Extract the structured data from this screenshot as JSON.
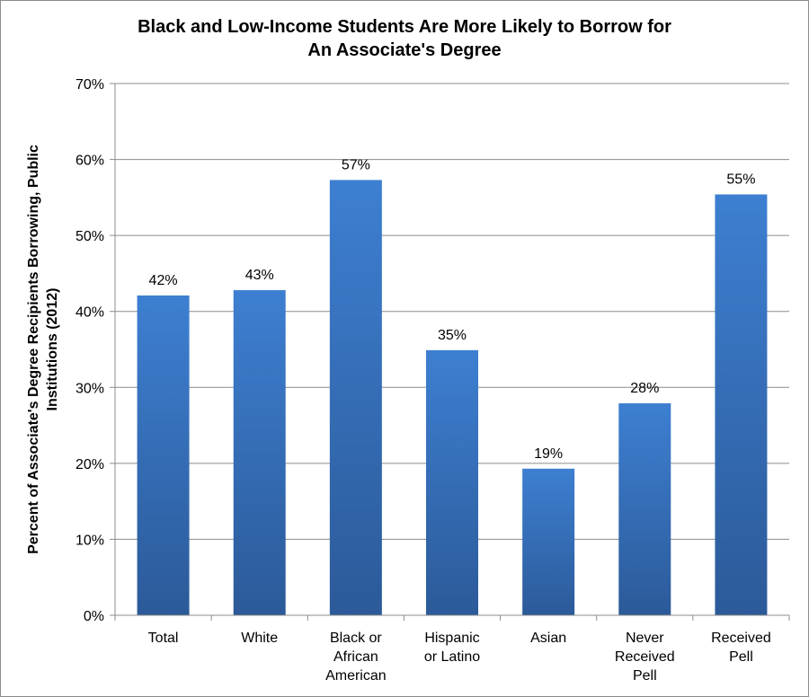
{
  "chart_data": {
    "type": "bar",
    "title": "Black and Low-Income  Students Are More Likely to Borrow for\nAn Associate's Degree",
    "xlabel": "",
    "ylabel": "Percent of Associate's Degree Recipients Borrowing,  Public Institutions (2012)",
    "ylabel_lines": [
      "Percent of Associate's Degree Recipients Borrowing,  Public",
      "Institutions (2012)"
    ],
    "categories": [
      "Total",
      "White",
      "Black or African American",
      "Hispanic or Latino",
      "Asian",
      "Never Received Pell",
      "Received Pell"
    ],
    "category_lines": [
      [
        "Total"
      ],
      [
        "White"
      ],
      [
        "Black or",
        "African",
        "American"
      ],
      [
        "Hispanic",
        "or Latino"
      ],
      [
        "Asian"
      ],
      [
        "Never",
        "Received",
        "Pell"
      ],
      [
        "Received",
        "Pell"
      ]
    ],
    "values": [
      42.1,
      42.8,
      57.3,
      34.9,
      19.3,
      27.9,
      55.4
    ],
    "data_labels": [
      "42%",
      "43%",
      "57%",
      "35%",
      "19%",
      "28%",
      "55%"
    ],
    "ylim": [
      0,
      70
    ],
    "yticks": [
      0,
      10,
      20,
      30,
      40,
      50,
      60,
      70
    ],
    "ytick_labels": [
      "0%",
      "10%",
      "20%",
      "30%",
      "40%",
      "50%",
      "60%",
      "70%"
    ],
    "grid": true,
    "legend": "none",
    "colors": {
      "bar_top": "#3d7fd1",
      "bar_bottom": "#2c5a99",
      "grid": "#8c8c8c",
      "axis": "#8c8c8c"
    }
  }
}
